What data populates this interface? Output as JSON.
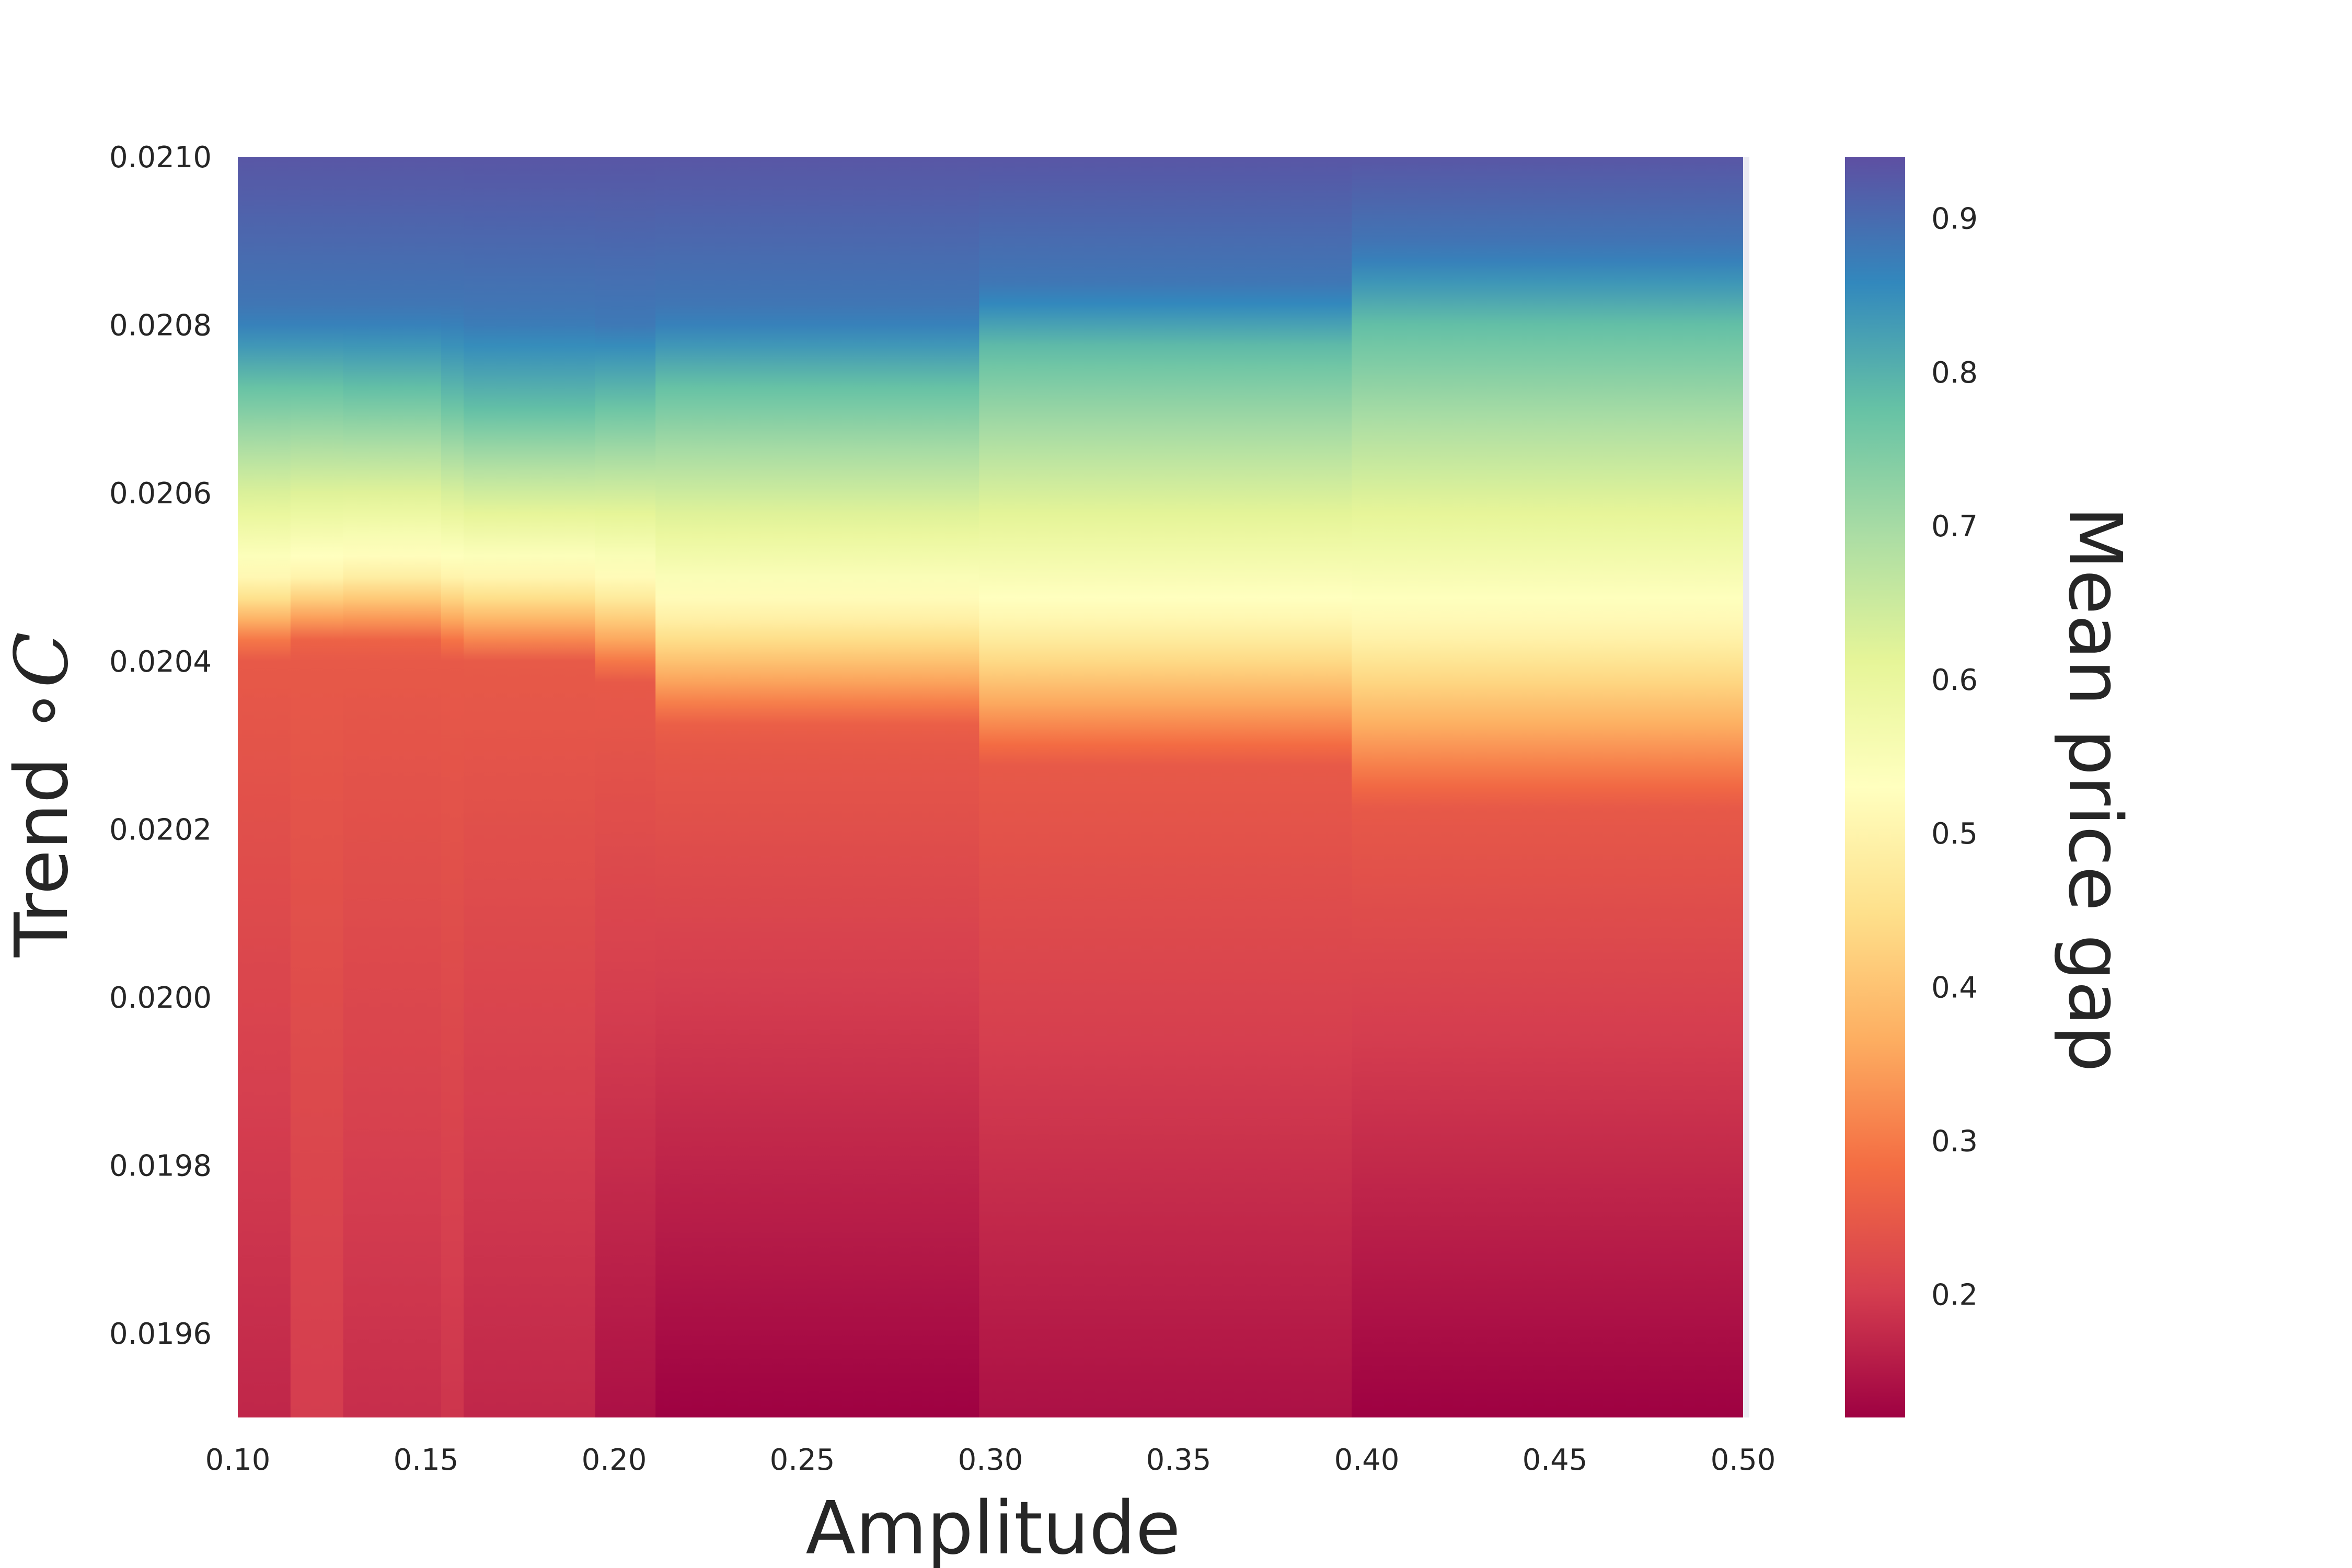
{
  "chart_data": {
    "type": "heatmap",
    "title": "",
    "xlabel": "Amplitude",
    "ylabel": "Trend ∘C",
    "ylabel_parts": [
      "Trend ",
      "∘",
      "C"
    ],
    "colorbar_label": "Mean price gap",
    "colormap": "Spectral",
    "xlim": [
      0.1,
      0.5
    ],
    "ylim": [
      0.0195,
      0.021
    ],
    "clim": [
      0.12,
      0.94
    ],
    "xticks": [
      0.1,
      0.15,
      0.2,
      0.25,
      0.3,
      0.35,
      0.4,
      0.45,
      0.5
    ],
    "xtick_labels": [
      "0.10",
      "0.15",
      "0.20",
      "0.25",
      "0.30",
      "0.35",
      "0.40",
      "0.45",
      "0.50"
    ],
    "yticks": [
      0.0196,
      0.0198,
      0.02,
      0.0202,
      0.0204,
      0.0206,
      0.0208,
      0.021
    ],
    "ytick_labels": [
      "0.0196",
      "0.0198",
      "0.0200",
      "0.0202",
      "0.0204",
      "0.0206",
      "0.0208",
      "0.0210"
    ],
    "colorbar_ticks": [
      0.2,
      0.3,
      0.4,
      0.5,
      0.6,
      0.7,
      0.8,
      0.9
    ],
    "colorbar_tick_labels": [
      "0.2",
      "0.3",
      "0.4",
      "0.5",
      "0.6",
      "0.7",
      "0.8",
      "0.9"
    ],
    "grid": false,
    "columns": [
      {
        "x_start": 0.1,
        "x_end": 0.114,
        "floor": 0.17,
        "mid_y": 0.02049,
        "low_y": 0.02041,
        "upper_y": 0.02073,
        "top_y": 0.02081
      },
      {
        "x_start": 0.114,
        "x_end": 0.128,
        "floor": 0.2,
        "mid_y": 0.0205,
        "low_y": 0.02042,
        "upper_y": 0.02073,
        "top_y": 0.02081
      },
      {
        "x_start": 0.128,
        "x_end": 0.154,
        "floor": 0.18,
        "mid_y": 0.020505,
        "low_y": 0.02042,
        "upper_y": 0.020725,
        "top_y": 0.02081
      },
      {
        "x_start": 0.154,
        "x_end": 0.16,
        "floor": 0.19,
        "mid_y": 0.0205,
        "low_y": 0.02041,
        "upper_y": 0.02071,
        "top_y": 0.02081
      },
      {
        "x_start": 0.16,
        "x_end": 0.195,
        "floor": 0.17,
        "mid_y": 0.020495,
        "low_y": 0.0204,
        "upper_y": 0.0207,
        "top_y": 0.020805
      },
      {
        "x_start": 0.195,
        "x_end": 0.211,
        "floor": 0.14,
        "mid_y": 0.020485,
        "low_y": 0.02038,
        "upper_y": 0.02071,
        "top_y": 0.0208
      },
      {
        "x_start": 0.211,
        "x_end": 0.297,
        "floor": 0.12,
        "mid_y": 0.020455,
        "low_y": 0.02032,
        "upper_y": 0.02073,
        "top_y": 0.02081
      },
      {
        "x_start": 0.297,
        "x_end": 0.396,
        "floor": 0.14,
        "mid_y": 0.02044,
        "low_y": 0.02028,
        "upper_y": 0.02077,
        "top_y": 0.02084
      },
      {
        "x_start": 0.396,
        "x_end": 0.5,
        "floor": 0.12,
        "mid_y": 0.02043,
        "low_y": 0.02023,
        "upper_y": 0.0208,
        "top_y": 0.020885
      }
    ]
  }
}
